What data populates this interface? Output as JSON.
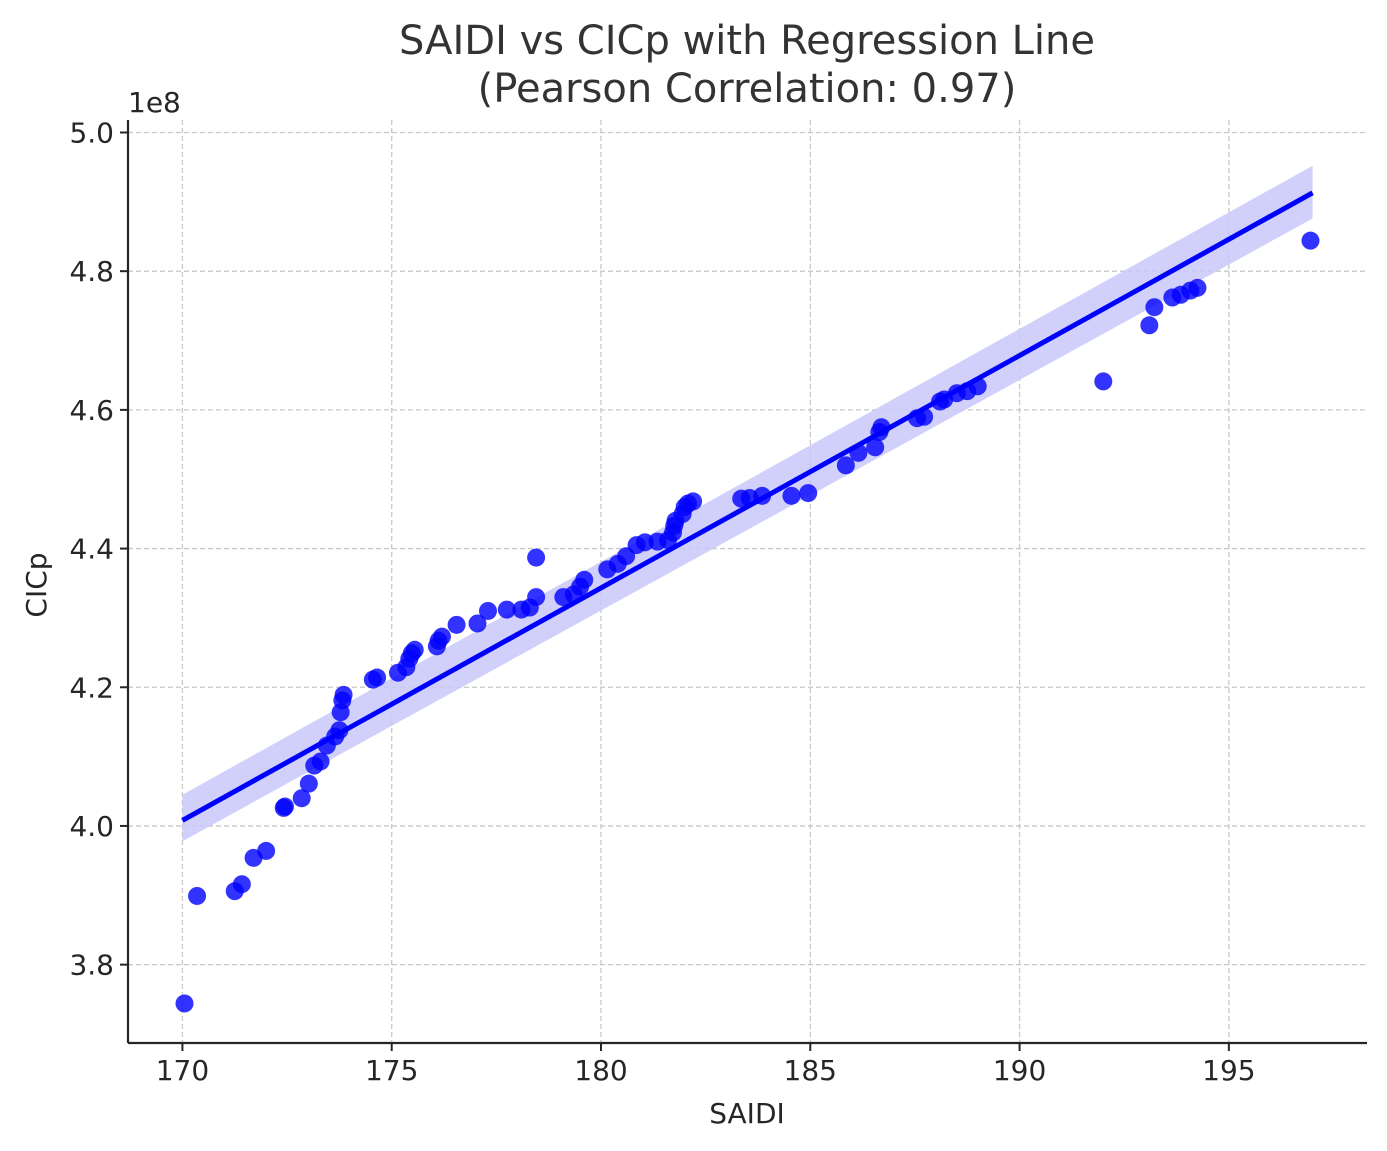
{
  "chart_data": {
    "type": "scatter",
    "title_line1": "SAIDI vs CICp with Regression Line",
    "title_line2": "(Pearson Correlation: 0.97)",
    "xlabel": "SAIDI",
    "ylabel": "CICp",
    "y_offset_text": "1e8",
    "xlim": [
      168.7,
      198.3
    ],
    "ylim": [
      3.687,
      5.018
    ],
    "x_ticks": [
      170,
      175,
      180,
      185,
      190,
      195
    ],
    "x_tick_labels": [
      "170",
      "175",
      "180",
      "185",
      "190",
      "195"
    ],
    "y_ticks": [
      3.8,
      4.0,
      4.2,
      4.4,
      4.6,
      4.8,
      5.0
    ],
    "y_tick_labels": [
      "3.8",
      "4.0",
      "4.2",
      "4.4",
      "4.6",
      "4.8",
      "5.0"
    ],
    "grid": true,
    "point_color": "#0000ff",
    "line_color": "#0000ff",
    "band_color": "#c8c8fa",
    "regression": {
      "x": [
        170.0,
        197.0
      ],
      "y": [
        4.008,
        4.913
      ],
      "ci_upper": [
        4.045,
        4.952
      ],
      "ci_lower": [
        3.978,
        4.876
      ]
    },
    "points": [
      {
        "x": 170.05,
        "y": 3.744
      },
      {
        "x": 170.35,
        "y": 3.899
      },
      {
        "x": 171.25,
        "y": 3.906
      },
      {
        "x": 171.42,
        "y": 3.916
      },
      {
        "x": 171.7,
        "y": 3.954
      },
      {
        "x": 172.0,
        "y": 3.964
      },
      {
        "x": 172.42,
        "y": 4.026
      },
      {
        "x": 172.45,
        "y": 4.028
      },
      {
        "x": 172.85,
        "y": 4.04
      },
      {
        "x": 173.02,
        "y": 4.061
      },
      {
        "x": 173.15,
        "y": 4.087
      },
      {
        "x": 173.3,
        "y": 4.093
      },
      {
        "x": 173.45,
        "y": 4.116
      },
      {
        "x": 173.65,
        "y": 4.129
      },
      {
        "x": 173.75,
        "y": 4.138
      },
      {
        "x": 173.78,
        "y": 4.164
      },
      {
        "x": 173.82,
        "y": 4.181
      },
      {
        "x": 173.85,
        "y": 4.189
      },
      {
        "x": 174.55,
        "y": 4.211
      },
      {
        "x": 174.65,
        "y": 4.214
      },
      {
        "x": 175.15,
        "y": 4.221
      },
      {
        "x": 175.35,
        "y": 4.229
      },
      {
        "x": 175.42,
        "y": 4.241
      },
      {
        "x": 175.48,
        "y": 4.249
      },
      {
        "x": 175.55,
        "y": 4.254
      },
      {
        "x": 176.08,
        "y": 4.259
      },
      {
        "x": 176.12,
        "y": 4.267
      },
      {
        "x": 176.2,
        "y": 4.273
      },
      {
        "x": 176.55,
        "y": 4.29
      },
      {
        "x": 177.05,
        "y": 4.292
      },
      {
        "x": 177.3,
        "y": 4.31
      },
      {
        "x": 177.75,
        "y": 4.312
      },
      {
        "x": 178.1,
        "y": 4.312
      },
      {
        "x": 178.3,
        "y": 4.315
      },
      {
        "x": 178.45,
        "y": 4.33
      },
      {
        "x": 178.45,
        "y": 4.387
      },
      {
        "x": 179.1,
        "y": 4.33
      },
      {
        "x": 179.35,
        "y": 4.334
      },
      {
        "x": 179.5,
        "y": 4.345
      },
      {
        "x": 179.6,
        "y": 4.355
      },
      {
        "x": 180.15,
        "y": 4.37
      },
      {
        "x": 180.4,
        "y": 4.378
      },
      {
        "x": 180.6,
        "y": 4.389
      },
      {
        "x": 180.85,
        "y": 4.405
      },
      {
        "x": 181.05,
        "y": 4.409
      },
      {
        "x": 181.35,
        "y": 4.41
      },
      {
        "x": 181.6,
        "y": 4.412
      },
      {
        "x": 181.72,
        "y": 4.423
      },
      {
        "x": 181.75,
        "y": 4.433
      },
      {
        "x": 181.78,
        "y": 4.44
      },
      {
        "x": 181.95,
        "y": 4.45
      },
      {
        "x": 182.0,
        "y": 4.46
      },
      {
        "x": 182.08,
        "y": 4.465
      },
      {
        "x": 182.2,
        "y": 4.468
      },
      {
        "x": 183.35,
        "y": 4.472
      },
      {
        "x": 183.55,
        "y": 4.473
      },
      {
        "x": 183.85,
        "y": 4.476
      },
      {
        "x": 184.55,
        "y": 4.476
      },
      {
        "x": 184.95,
        "y": 4.48
      },
      {
        "x": 185.85,
        "y": 4.52
      },
      {
        "x": 186.15,
        "y": 4.538
      },
      {
        "x": 186.55,
        "y": 4.546
      },
      {
        "x": 186.65,
        "y": 4.568
      },
      {
        "x": 186.7,
        "y": 4.575
      },
      {
        "x": 187.55,
        "y": 4.588
      },
      {
        "x": 187.72,
        "y": 4.59
      },
      {
        "x": 188.1,
        "y": 4.612
      },
      {
        "x": 188.2,
        "y": 4.615
      },
      {
        "x": 188.5,
        "y": 4.624
      },
      {
        "x": 188.75,
        "y": 4.627
      },
      {
        "x": 189.0,
        "y": 4.634
      },
      {
        "x": 192.0,
        "y": 4.641
      },
      {
        "x": 193.1,
        "y": 4.722
      },
      {
        "x": 193.22,
        "y": 4.748
      },
      {
        "x": 193.65,
        "y": 4.762
      },
      {
        "x": 193.85,
        "y": 4.766
      },
      {
        "x": 194.08,
        "y": 4.772
      },
      {
        "x": 194.25,
        "y": 4.776
      },
      {
        "x": 196.95,
        "y": 4.844
      }
    ]
  }
}
